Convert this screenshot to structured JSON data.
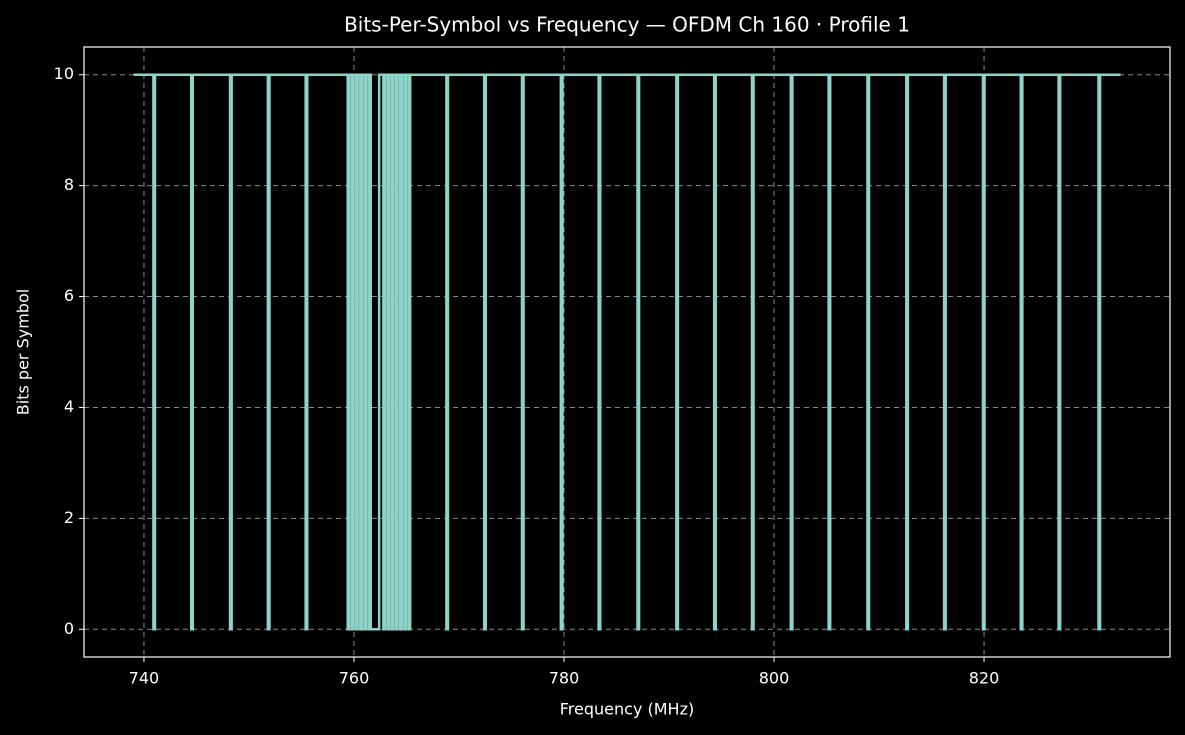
{
  "chart_data": {
    "type": "line",
    "title": "Bits-Per-Symbol vs Frequency — OFDM Ch 160 · Profile 1",
    "xlabel": "Frequency (MHz)",
    "ylabel": "Bits per Symbol",
    "xlim": [
      734.29,
      837.71
    ],
    "ylim": [
      -0.5,
      10.5
    ],
    "xticks": [
      740,
      760,
      780,
      800,
      820
    ],
    "yticks": [
      0,
      2,
      4,
      6,
      8,
      10
    ],
    "grid": true,
    "series": [
      {
        "color": "#8dd3c7",
        "x": [
          739,
          740.9,
          740.9,
          741.05,
          741.05,
          744.5,
          744.5,
          744.65,
          744.65,
          748.2,
          748.2,
          748.35,
          748.35,
          751.8,
          751.8,
          751.95,
          751.95,
          755.4,
          755.4,
          755.55,
          755.55,
          759.4,
          759.4,
          759.55,
          759.55,
          759.8,
          759.8,
          759.95,
          759.95,
          760.2,
          760.2,
          760.35,
          760.35,
          760.6,
          760.6,
          760.75,
          760.75,
          761.0,
          761.0,
          761.15,
          761.15,
          761.4,
          761.4,
          761.55,
          761.55,
          761.6,
          761.6,
          762.4,
          762.4,
          762.8,
          762.8,
          762.95,
          762.95,
          763.2,
          763.2,
          763.35,
          763.35,
          763.6,
          763.6,
          763.75,
          763.75,
          764.0,
          764.0,
          764.15,
          764.15,
          764.4,
          764.4,
          764.55,
          764.55,
          764.8,
          764.8,
          764.95,
          764.95,
          765.2,
          765.2,
          765.35,
          765.35,
          768.8,
          768.8,
          768.95,
          768.95,
          772.4,
          772.4,
          772.55,
          772.55,
          776.0,
          776.0,
          776.15,
          776.15,
          779.7,
          779.7,
          779.85,
          779.85,
          783.3,
          783.3,
          783.45,
          783.45,
          787.0,
          787.0,
          787.15,
          787.15,
          790.7,
          790.7,
          790.85,
          790.85,
          794.3,
          794.3,
          794.45,
          794.45,
          797.9,
          797.9,
          798.05,
          798.05,
          801.6,
          801.6,
          801.75,
          801.75,
          805.2,
          805.2,
          805.35,
          805.35,
          808.9,
          808.9,
          809.05,
          809.05,
          812.6,
          812.6,
          812.75,
          812.75,
          816.2,
          816.2,
          816.35,
          816.35,
          819.9,
          819.9,
          820.05,
          820.05,
          823.5,
          823.5,
          823.65,
          823.65,
          827.1,
          827.1,
          827.25,
          827.25,
          830.9,
          830.9,
          831.05,
          831.05,
          833
        ],
        "values": [
          10,
          10,
          0,
          0,
          10,
          10,
          0,
          0,
          10,
          10,
          0,
          0,
          10,
          10,
          0,
          0,
          10,
          10,
          0,
          0,
          10,
          10,
          0,
          0,
          10,
          10,
          0,
          0,
          10,
          10,
          0,
          0,
          10,
          10,
          0,
          0,
          10,
          10,
          0,
          0,
          10,
          10,
          0,
          0,
          10,
          10,
          0,
          0,
          10,
          10,
          0,
          0,
          10,
          10,
          0,
          0,
          10,
          10,
          0,
          0,
          10,
          10,
          0,
          0,
          10,
          10,
          0,
          0,
          10,
          10,
          0,
          0,
          10,
          10,
          0,
          0,
          10,
          10,
          0,
          0,
          10,
          10,
          0,
          0,
          10,
          10,
          0,
          0,
          10,
          10,
          0,
          0,
          10,
          10,
          0,
          0,
          10,
          10,
          0,
          0,
          10,
          10,
          0,
          0,
          10,
          10,
          0,
          0,
          10,
          10,
          0,
          0,
          10,
          10,
          0,
          0,
          10,
          10,
          0,
          0,
          10,
          10,
          0,
          0,
          10,
          10,
          0,
          0,
          10,
          10,
          0,
          0,
          10,
          10,
          0,
          0,
          10,
          10,
          0,
          0,
          10,
          10,
          0,
          0,
          10,
          10,
          0,
          0,
          10,
          10
        ]
      }
    ]
  }
}
